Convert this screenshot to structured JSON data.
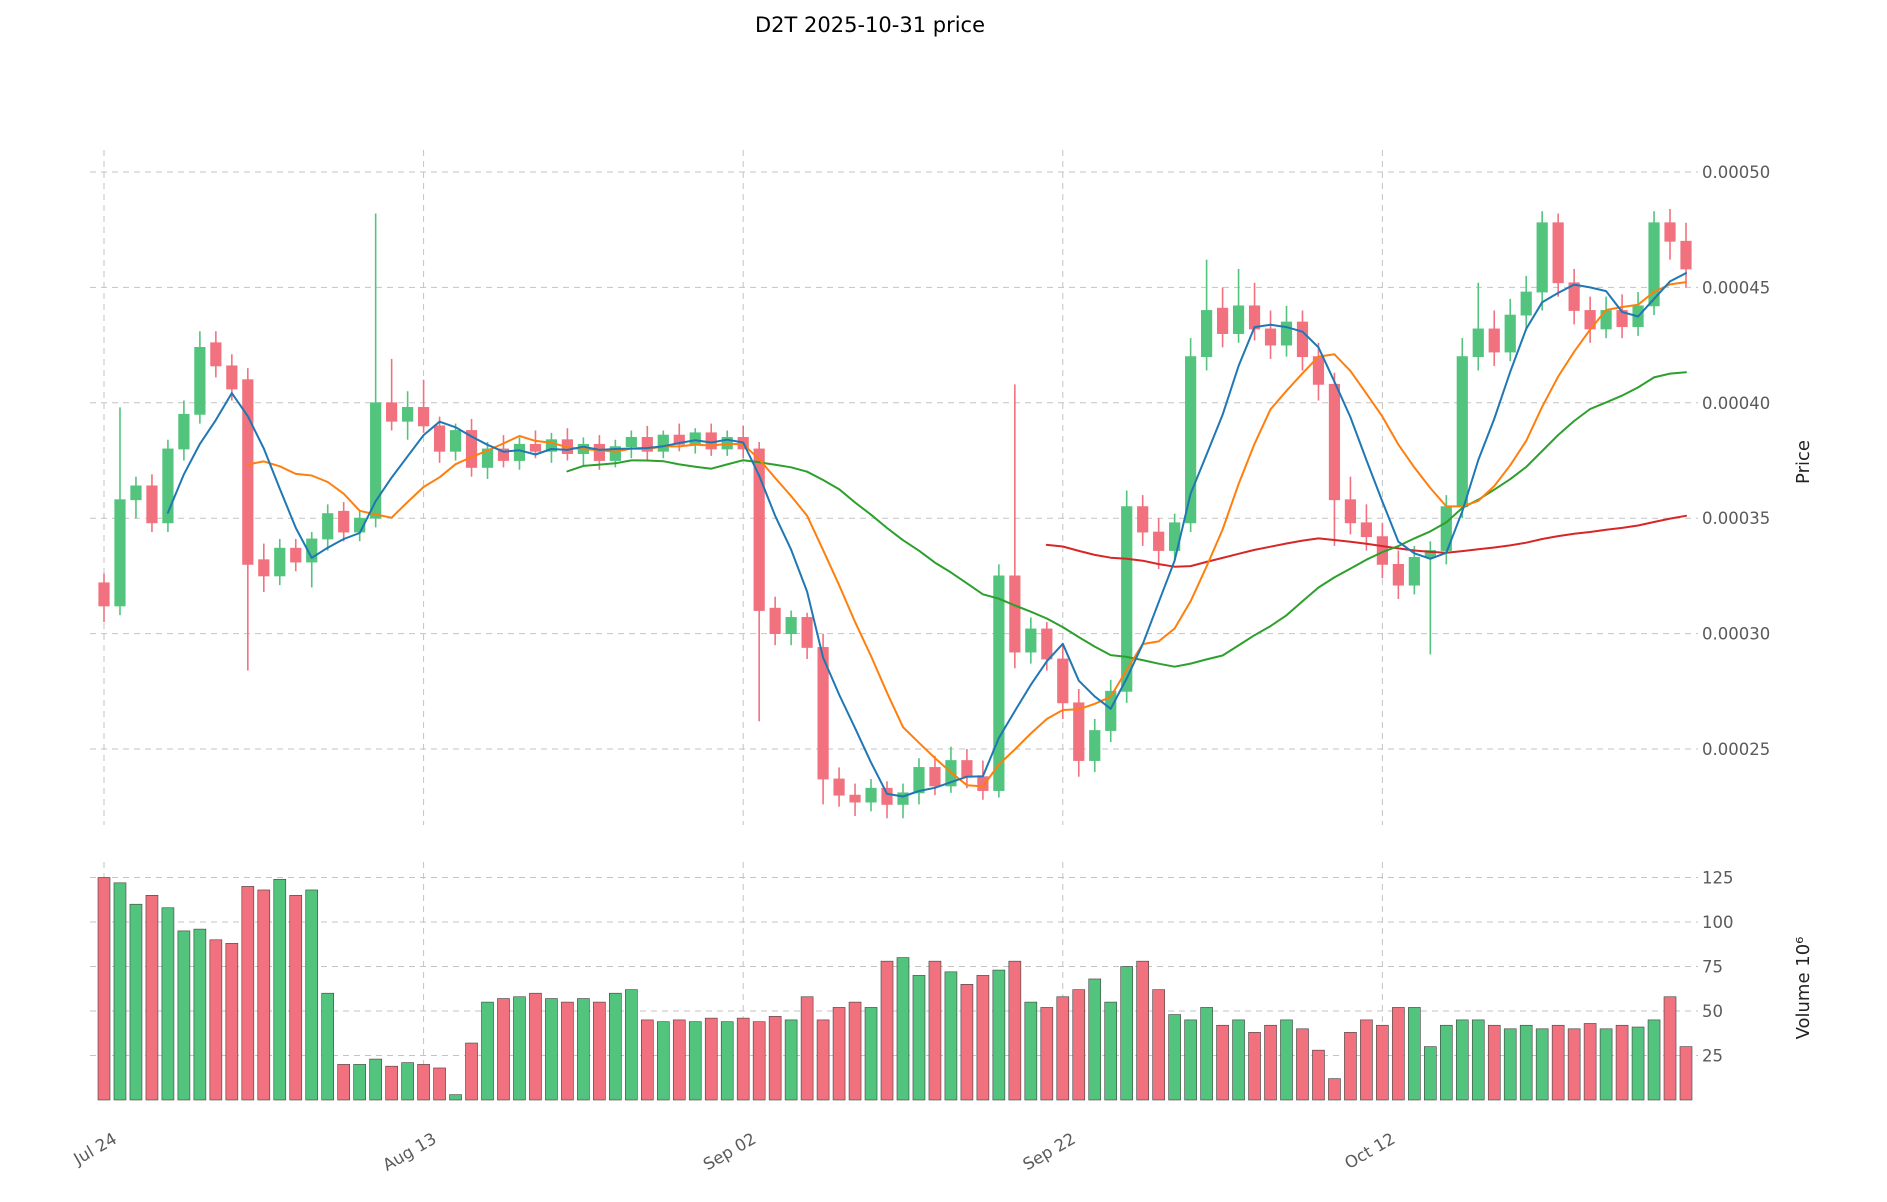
{
  "title": "D2T  2025-10-31  price",
  "symbol": "D2T",
  "as_of_date": "2025-10-31",
  "axes": {
    "price_label": "Price",
    "volume_label": "Volume  10⁶",
    "price_ticks": [
      {
        "label": "0.00050",
        "value": 0.0005
      },
      {
        "label": "0.00045",
        "value": 0.00045
      },
      {
        "label": "0.00040",
        "value": 0.0004
      },
      {
        "label": "0.00035",
        "value": 0.00035
      },
      {
        "label": "0.00030",
        "value": 0.0003
      },
      {
        "label": "0.00025",
        "value": 0.00025
      }
    ],
    "volume_ticks": [
      {
        "label": "125",
        "value": 125
      },
      {
        "label": "100",
        "value": 100
      },
      {
        "label": "75",
        "value": 75
      },
      {
        "label": "50",
        "value": 50
      },
      {
        "label": "25",
        "value": 25
      }
    ],
    "x_ticks": [
      {
        "label": "Jul 24",
        "index": 0
      },
      {
        "label": "Aug 13",
        "index": 20
      },
      {
        "label": "Sep 02",
        "index": 40
      },
      {
        "label": "Sep 22",
        "index": 60
      },
      {
        "label": "Oct 12",
        "index": 80
      }
    ]
  },
  "colors": {
    "up": "#52c47d",
    "down": "#f1727e",
    "volume_edge": "#404040",
    "grid": "#c3c3c3",
    "ma_colors": [
      "#1f77b4",
      "#ff7f0e",
      "#2ca02c",
      "#d62728"
    ]
  },
  "chart_data": {
    "type": "candlestick",
    "title": "D2T  2025-10-31  price",
    "x_tick_labels": [
      "Jul 24",
      "Aug 13",
      "Sep 02",
      "Sep 22",
      "Oct 12"
    ],
    "x_tick_indices": [
      0,
      20,
      40,
      60,
      80
    ],
    "ylabel_price": "Price",
    "ylabel_volume": "Volume  10⁶",
    "ylim_price": [
      0.000217,
      0.00051
    ],
    "ylim_volume": [
      0,
      140
    ],
    "grid": true,
    "moving_averages": [
      {
        "period": 5,
        "color": "#1f77b4"
      },
      {
        "period": 10,
        "color": "#ff7f0e"
      },
      {
        "period": 30,
        "color": "#2ca02c"
      },
      {
        "period": 60,
        "color": "#d62728"
      }
    ],
    "ohlc": [
      [
        0.000322,
        0.000326,
        0.000305,
        0.000312
      ],
      [
        0.000312,
        0.000398,
        0.000308,
        0.000358
      ],
      [
        0.000358,
        0.000368,
        0.00035,
        0.000364
      ],
      [
        0.000364,
        0.000369,
        0.000344,
        0.000348
      ],
      [
        0.000348,
        0.000384,
        0.000344,
        0.00038
      ],
      [
        0.00038,
        0.000401,
        0.000375,
        0.000395
      ],
      [
        0.000395,
        0.000431,
        0.000391,
        0.000424
      ],
      [
        0.000426,
        0.000431,
        0.000411,
        0.000416
      ],
      [
        0.000416,
        0.000421,
        0.000401,
        0.000406
      ],
      [
        0.00041,
        0.000415,
        0.000284,
        0.00033
      ],
      [
        0.000332,
        0.000339,
        0.000318,
        0.000325
      ],
      [
        0.000325,
        0.000341,
        0.000321,
        0.000337
      ],
      [
        0.000337,
        0.000341,
        0.000327,
        0.000331
      ],
      [
        0.000331,
        0.000344,
        0.00032,
        0.000341
      ],
      [
        0.000341,
        0.000356,
        0.000336,
        0.000352
      ],
      [
        0.000353,
        0.000357,
        0.00034,
        0.000344
      ],
      [
        0.000344,
        0.000353,
        0.00034,
        0.00035
      ],
      [
        0.00035,
        0.000482,
        0.000346,
        0.0004
      ],
      [
        0.0004,
        0.000419,
        0.000388,
        0.000392
      ],
      [
        0.000392,
        0.000405,
        0.000384,
        0.000398
      ],
      [
        0.000398,
        0.00041,
        0.000387,
        0.00039
      ],
      [
        0.00039,
        0.000394,
        0.000374,
        0.000379
      ],
      [
        0.000379,
        0.000391,
        0.000375,
        0.000388
      ],
      [
        0.000388,
        0.000393,
        0.000368,
        0.000372
      ],
      [
        0.000372,
        0.000383,
        0.000367,
        0.00038
      ],
      [
        0.00038,
        0.000386,
        0.000372,
        0.000375
      ],
      [
        0.000375,
        0.000385,
        0.000371,
        0.000382
      ],
      [
        0.000382,
        0.000388,
        0.000376,
        0.000379
      ],
      [
        0.000379,
        0.000387,
        0.000374,
        0.000384
      ],
      [
        0.000384,
        0.000389,
        0.000375,
        0.000378
      ],
      [
        0.000378,
        0.000385,
        0.000373,
        0.000382
      ],
      [
        0.000382,
        0.000386,
        0.000371,
        0.000375
      ],
      [
        0.000375,
        0.000384,
        0.000372,
        0.000381
      ],
      [
        0.000381,
        0.000388,
        0.000376,
        0.000385
      ],
      [
        0.000385,
        0.00039,
        0.000375,
        0.000379
      ],
      [
        0.000379,
        0.000388,
        0.000376,
        0.000386
      ],
      [
        0.000386,
        0.000391,
        0.000379,
        0.000382
      ],
      [
        0.000382,
        0.000389,
        0.000378,
        0.000387
      ],
      [
        0.000387,
        0.000391,
        0.000377,
        0.00038
      ],
      [
        0.00038,
        0.000388,
        0.000377,
        0.000385
      ],
      [
        0.000385,
        0.00039,
        0.000376,
        0.00038
      ],
      [
        0.00038,
        0.000383,
        0.000262,
        0.00031
      ],
      [
        0.000311,
        0.000316,
        0.000295,
        0.0003
      ],
      [
        0.0003,
        0.00031,
        0.000295,
        0.000307
      ],
      [
        0.000307,
        0.000309,
        0.000289,
        0.000294
      ],
      [
        0.000294,
        0.0003,
        0.000226,
        0.000237
      ],
      [
        0.000237,
        0.000242,
        0.000225,
        0.00023
      ],
      [
        0.00023,
        0.000235,
        0.000221,
        0.000227
      ],
      [
        0.000227,
        0.000237,
        0.000223,
        0.000233
      ],
      [
        0.000233,
        0.000236,
        0.00022,
        0.000226
      ],
      [
        0.000226,
        0.000235,
        0.00022,
        0.000231
      ],
      [
        0.000231,
        0.000246,
        0.000226,
        0.000242
      ],
      [
        0.000242,
        0.000247,
        0.00023,
        0.000234
      ],
      [
        0.000234,
        0.000251,
        0.000231,
        0.000245
      ],
      [
        0.000245,
        0.00025,
        0.000233,
        0.000238
      ],
      [
        0.000238,
        0.000245,
        0.000228,
        0.000232
      ],
      [
        0.000232,
        0.00033,
        0.000229,
        0.000325
      ],
      [
        0.000325,
        0.000408,
        0.000285,
        0.000292
      ],
      [
        0.000292,
        0.000307,
        0.000287,
        0.000302
      ],
      [
        0.000302,
        0.000305,
        0.000284,
        0.000289
      ],
      [
        0.000289,
        0.000295,
        0.000263,
        0.00027
      ],
      [
        0.00027,
        0.000276,
        0.000238,
        0.000245
      ],
      [
        0.000245,
        0.000263,
        0.00024,
        0.000258
      ],
      [
        0.000258,
        0.00028,
        0.000253,
        0.000275
      ],
      [
        0.000275,
        0.000362,
        0.00027,
        0.000355
      ],
      [
        0.000355,
        0.00036,
        0.000338,
        0.000344
      ],
      [
        0.000344,
        0.00035,
        0.000328,
        0.000336
      ],
      [
        0.000336,
        0.000352,
        0.000332,
        0.000348
      ],
      [
        0.000348,
        0.000428,
        0.000344,
        0.00042
      ],
      [
        0.00042,
        0.000462,
        0.000414,
        0.00044
      ],
      [
        0.000441,
        0.00045,
        0.000424,
        0.00043
      ],
      [
        0.00043,
        0.000458,
        0.000426,
        0.000442
      ],
      [
        0.000442,
        0.000452,
        0.000427,
        0.000432
      ],
      [
        0.000432,
        0.00044,
        0.000419,
        0.000425
      ],
      [
        0.000425,
        0.000442,
        0.00042,
        0.000435
      ],
      [
        0.000435,
        0.00044,
        0.000414,
        0.00042
      ],
      [
        0.00042,
        0.000426,
        0.000401,
        0.000408
      ],
      [
        0.000408,
        0.000413,
        0.000338,
        0.000358
      ],
      [
        0.000358,
        0.000368,
        0.000343,
        0.000348
      ],
      [
        0.000348,
        0.000356,
        0.000336,
        0.000342
      ],
      [
        0.000342,
        0.000348,
        0.000324,
        0.00033
      ],
      [
        0.00033,
        0.000336,
        0.000315,
        0.000321
      ],
      [
        0.000321,
        0.000338,
        0.000317,
        0.000333
      ],
      [
        0.000333,
        0.00034,
        0.000291,
        0.000336
      ],
      [
        0.000336,
        0.00036,
        0.00033,
        0.000355
      ],
      [
        0.000355,
        0.000428,
        0.00035,
        0.00042
      ],
      [
        0.00042,
        0.000452,
        0.000414,
        0.000432
      ],
      [
        0.000432,
        0.00044,
        0.000416,
        0.000422
      ],
      [
        0.000422,
        0.000445,
        0.000418,
        0.000438
      ],
      [
        0.000438,
        0.000455,
        0.000432,
        0.000448
      ],
      [
        0.000448,
        0.000483,
        0.00044,
        0.000478
      ],
      [
        0.000478,
        0.000482,
        0.000446,
        0.000452
      ],
      [
        0.000452,
        0.000458,
        0.000434,
        0.00044
      ],
      [
        0.00044,
        0.000446,
        0.000426,
        0.000432
      ],
      [
        0.000432,
        0.000446,
        0.000428,
        0.00044
      ],
      [
        0.00044,
        0.000447,
        0.000428,
        0.000433
      ],
      [
        0.000433,
        0.000448,
        0.000429,
        0.000442
      ],
      [
        0.000442,
        0.000483,
        0.000438,
        0.000478
      ],
      [
        0.000478,
        0.000484,
        0.000462,
        0.00047
      ],
      [
        0.00047,
        0.000478,
        0.00045,
        0.000458
      ]
    ],
    "volume": [
      125,
      122,
      110,
      115,
      108,
      95,
      96,
      90,
      88,
      120,
      118,
      124,
      115,
      118,
      60,
      20,
      20,
      23,
      19,
      21,
      20,
      18,
      3,
      32,
      55,
      57,
      58,
      60,
      57,
      55,
      57,
      55,
      60,
      62,
      45,
      44,
      45,
      44,
      46,
      44,
      46,
      44,
      47,
      45,
      58,
      45,
      52,
      55,
      52,
      78,
      80,
      70,
      78,
      72,
      65,
      70,
      73,
      78,
      55,
      52,
      58,
      62,
      68,
      55,
      75,
      78,
      62,
      48,
      45,
      52,
      42,
      45,
      38,
      42,
      45,
      40,
      28,
      12,
      38,
      45,
      42,
      52,
      52,
      30,
      42,
      45,
      45,
      42,
      40,
      42,
      40,
      42,
      40,
      43,
      40,
      42,
      41,
      45,
      58,
      30
    ]
  }
}
